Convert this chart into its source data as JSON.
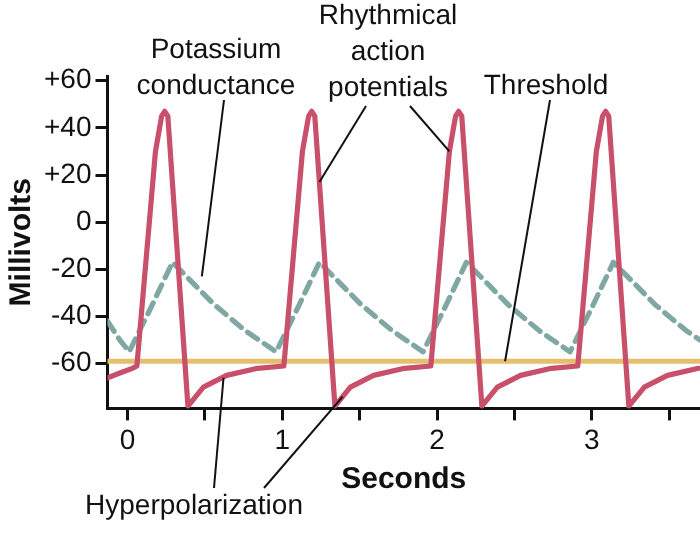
{
  "chart_data": {
    "type": "line",
    "xlabel": "Seconds",
    "ylabel": "Millivolts",
    "xlim": [
      -0.13,
      3.7
    ],
    "ylim": [
      -79,
      62
    ],
    "xticks": [
      0,
      {
        "value": 0.5,
        "label": null
      },
      1,
      {
        "value": 1.5,
        "label": null
      },
      2,
      {
        "value": 2.5,
        "label": null
      },
      3,
      {
        "value": 3.5,
        "label": null
      }
    ],
    "yticks": [
      {
        "value": 60,
        "label": "+60"
      },
      {
        "value": 40,
        "label": "+40"
      },
      {
        "value": 20,
        "label": "+20"
      },
      0,
      -20,
      -40,
      -60
    ],
    "marker": "none",
    "series": [
      {
        "color": "#c8506a",
        "line_style": "solid",
        "x": [
          -0.13,
          -0.05,
          0.03,
          0.06,
          0.18,
          0.22,
          0.24,
          0.26,
          0.39,
          0.49,
          0.64,
          0.84,
          1.01,
          1.13,
          1.17,
          1.19,
          1.21,
          1.34,
          1.44,
          1.59,
          1.79,
          1.96,
          2.08,
          2.12,
          2.14,
          2.16,
          2.29,
          2.39,
          2.54,
          2.74,
          2.91,
          3.03,
          3.07,
          3.09,
          3.11,
          3.24,
          3.34,
          3.49,
          3.69
        ],
        "values": [
          -66,
          -64,
          -62,
          -61,
          30,
          45,
          47,
          45,
          -78,
          -70,
          -65,
          -62,
          -61,
          30,
          45,
          47,
          45,
          -78,
          -70,
          -65,
          -62,
          -61,
          30,
          45,
          47,
          45,
          -78,
          -70,
          -65,
          -62,
          -61,
          30,
          45,
          47,
          45,
          -78,
          -70,
          -65,
          -62
        ]
      },
      {
        "color": "#7fa8a4",
        "line_style": "dashed",
        "x": [
          -0.13,
          -0.05,
          0.01,
          0.16,
          0.29,
          0.41,
          0.56,
          0.76,
          0.96,
          1.11,
          1.24,
          1.36,
          1.51,
          1.71,
          1.91,
          2.06,
          2.19,
          2.31,
          2.46,
          2.66,
          2.86,
          3.01,
          3.14,
          3.26,
          3.41,
          3.61,
          3.7
        ],
        "values": [
          -42,
          -50,
          -55,
          -35,
          -17,
          -25,
          -35,
          -46,
          -55,
          -35,
          -17,
          -25,
          -35,
          -46,
          -55,
          -35,
          -17,
          -25,
          -35,
          -46,
          -55,
          -35,
          -17,
          -25,
          -35,
          -46,
          -50
        ]
      }
    ],
    "ref_lines": [
      {
        "axis": "y",
        "value": -59,
        "label": "Threshold",
        "color": "#e6bf6e"
      }
    ],
    "annotations": [
      {
        "text": "Potassium conductance",
        "x": 0.48,
        "y": -23
      },
      {
        "text": "Rhythmical action potentials",
        "x": 1.24,
        "y": 17
      },
      {
        "text": "Hyperpolarization",
        "x": 0.62,
        "y": -66
      }
    ]
  }
}
